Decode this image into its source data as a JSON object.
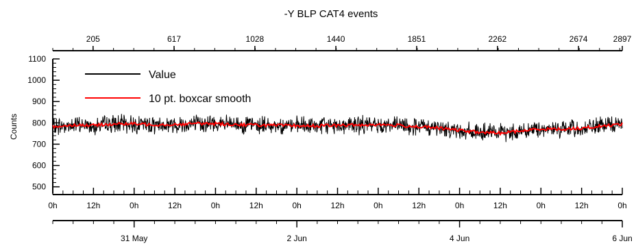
{
  "chart_data": {
    "type": "line",
    "title": "-Y BLP CAT4 events",
    "ylabel": "Counts",
    "xlabel": "",
    "ylim": [
      470,
      1100
    ],
    "yticks": [
      500,
      600,
      700,
      800,
      900,
      1000,
      1100
    ],
    "top_axis": {
      "range": [
        0,
        2897
      ],
      "tick_labels": [
        "205",
        "617",
        "1028",
        "1440",
        "1851",
        "2262",
        "2674",
        "2897"
      ],
      "tick_values": [
        205,
        617,
        1028,
        1440,
        1851,
        2262,
        2674,
        2897
      ]
    },
    "bottom_axis": {
      "range_hours": [
        0,
        168
      ],
      "hour_labels": [
        "0h",
        "12h",
        "0h",
        "12h",
        "0h",
        "12h",
        "0h",
        "12h",
        "0h",
        "12h",
        "0h",
        "12h",
        "0h",
        "12h",
        "0h"
      ],
      "date_labels": [
        "31 May",
        "2 Jun",
        "4 Jun",
        "6 Jun"
      ],
      "date_hours": [
        24,
        72,
        120,
        168
      ]
    },
    "legend": {
      "placement": "top-left",
      "entries": [
        "Value",
        "10 pt. boxcar smooth"
      ]
    },
    "series": [
      {
        "name": "Value",
        "color": "#000000",
        "summary": "raw counts per sample, fluctuating roughly between 700 and 860 about the smoothed trend",
        "noise_amplitude": 45
      },
      {
        "name": "10 pt. boxcar smooth",
        "color": "#ff0000",
        "x_hours": [
          0,
          6,
          12,
          18,
          24,
          30,
          36,
          42,
          48,
          54,
          60,
          66,
          72,
          78,
          84,
          90,
          96,
          102,
          108,
          114,
          120,
          126,
          132,
          138,
          144,
          150,
          156,
          162,
          168
        ],
        "values": [
          782,
          790,
          788,
          795,
          795,
          792,
          792,
          797,
          796,
          792,
          790,
          788,
          786,
          786,
          788,
          790,
          792,
          788,
          782,
          775,
          765,
          755,
          752,
          762,
          772,
          770,
          775,
          785,
          795
        ]
      }
    ]
  }
}
